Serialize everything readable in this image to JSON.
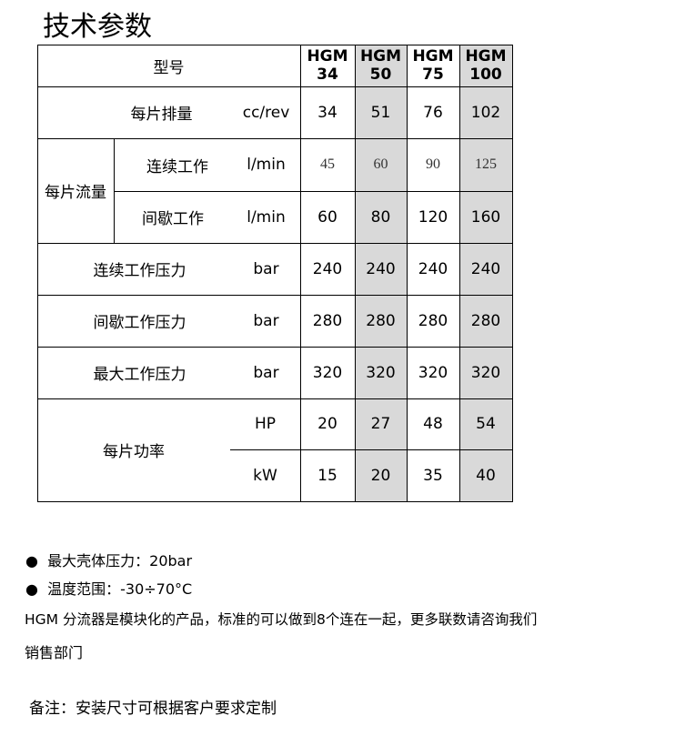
{
  "title": "技术参数",
  "table": {
    "header_label": "型号",
    "models": [
      [
        "HGM",
        "34"
      ],
      [
        "HGM",
        "50"
      ],
      [
        "HGM",
        "75"
      ],
      [
        "HGM",
        "100"
      ]
    ],
    "rows": [
      {
        "label": "每片排量",
        "unit": "cc/rev",
        "values": [
          "34",
          "51",
          "76",
          "102"
        ]
      },
      {
        "group": "每片流量",
        "label": "连续工作",
        "unit": "l/min",
        "values": [
          "45",
          "60",
          "90",
          "125"
        ]
      },
      {
        "group": "每片流量",
        "label": "间歇工作",
        "unit": "l/min",
        "values": [
          "60",
          "80",
          "120",
          "160"
        ]
      },
      {
        "label": "连续工作压力",
        "unit": "bar",
        "values": [
          "240",
          "240",
          "240",
          "240"
        ]
      },
      {
        "label": "间歇工作压力",
        "unit": "bar",
        "values": [
          "280",
          "280",
          "280",
          "280"
        ]
      },
      {
        "label": "最大工作压力",
        "unit": "bar",
        "values": [
          "320",
          "320",
          "320",
          "320"
        ]
      },
      {
        "group": "每片功率",
        "unit": "HP",
        "values": [
          "20",
          "27",
          "48",
          "54"
        ]
      },
      {
        "group": "每片功率",
        "unit": "kW",
        "values": [
          "15",
          "20",
          "35",
          "40"
        ]
      }
    ]
  },
  "bullets": [
    "最大壳体压力：20bar",
    "温度范围：-30÷70°C"
  ],
  "paragraph": [
    "HGM 分流器是模块化的产品，标准的可以做到8个连在一起，更多联数请咨询我们",
    "销售部门"
  ],
  "remark": "备注：安装尺寸可根据客户要求定制"
}
